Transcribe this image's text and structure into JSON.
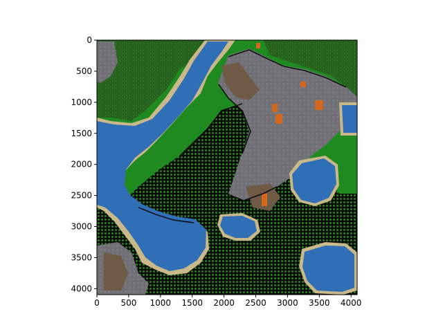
{
  "figure": {
    "background": "#ffffff",
    "grid": false,
    "ticks_color": "#000000"
  },
  "map": {
    "x_range": [
      0,
      4096
    ],
    "y_range": [
      4096,
      0
    ],
    "y_inverted": true,
    "palette": {
      "water": "#2f6db4",
      "deep_grass": "#1a8c1a",
      "forest": "#2f7a24",
      "dense_forest_grid": "#0d2a0d",
      "sand": "#c8b88a",
      "dirt": "#6e5a45",
      "rock": "#6f6f75",
      "lava": "#d2691e",
      "outline": "#000000"
    },
    "x_tick_labels": [
      "0",
      "500",
      "1000",
      "1500",
      "2000",
      "2500",
      "3000",
      "3500",
      "4000"
    ],
    "x_tick_values": [
      0,
      500,
      1000,
      1500,
      2000,
      2500,
      3000,
      3500,
      4000
    ],
    "y_tick_labels": [
      "0",
      "500",
      "1000",
      "1500",
      "2000",
      "2500",
      "3000",
      "3500",
      "4000"
    ],
    "y_tick_values": [
      0,
      500,
      1000,
      1500,
      2000,
      2500,
      3000,
      3500,
      4000
    ]
  }
}
